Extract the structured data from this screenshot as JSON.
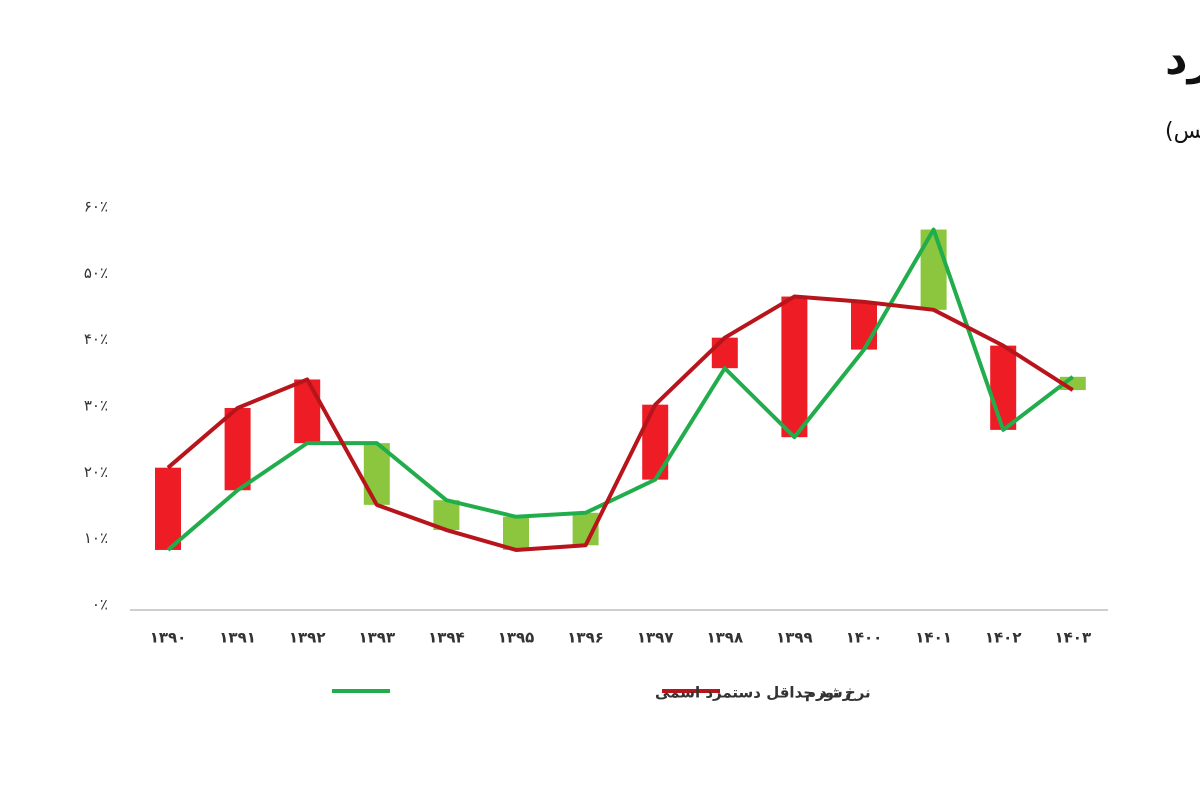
{
  "chart_data": {
    "type": "line",
    "title": "نرخ تورم و نرخ رشد حداقل دستمزد",
    "subtitle": "(واحد : درصد- منبع : مرکز پژوهش‌های مجلس)",
    "categories": [
      "۱۳۹۰",
      "۱۳۹۱",
      "۱۳۹۲",
      "۱۳۹۳",
      "۱۳۹۴",
      "۱۳۹۵",
      "۱۳۹۶",
      "۱۳۹۷",
      "۱۳۹۸",
      "۱۳۹۹",
      "۱۴۰۰",
      "۱۴۰۱",
      "۱۴۰۲",
      "۱۴۰۳"
    ],
    "series": [
      {
        "name": "نرخ تورم",
        "color": "#b8141b",
        "values": [
          20.7,
          29.7,
          34,
          15.1,
          11.3,
          8.3,
          9,
          30.2,
          40.3,
          46.5,
          45.7,
          44.5,
          39.1,
          32.4
        ]
      },
      {
        "name": "رشد حداقل دستمزد اسمی",
        "color": "#21ad4b",
        "values": [
          8.3,
          17.3,
          24.4,
          24.4,
          15.8,
          13.3,
          13.9,
          18.9,
          35.7,
          25.3,
          38.5,
          56.6,
          26.4,
          34.4
        ]
      }
    ],
    "gap_bar_colors": [
      "#ee1c24",
      "#8cc63e"
    ],
    "ylim": [
      0,
      60
    ],
    "yticks": [
      {
        "value": 0,
        "label": "۰٪"
      },
      {
        "value": 10,
        "label": "۱۰٪"
      },
      {
        "value": 20,
        "label": "۲۰٪"
      },
      {
        "value": 30,
        "label": "۳۰٪"
      },
      {
        "value": 40,
        "label": "۴۰٪"
      },
      {
        "value": 50,
        "label": "۵۰٪"
      },
      {
        "value": 60,
        "label": "۶۰٪"
      }
    ]
  }
}
